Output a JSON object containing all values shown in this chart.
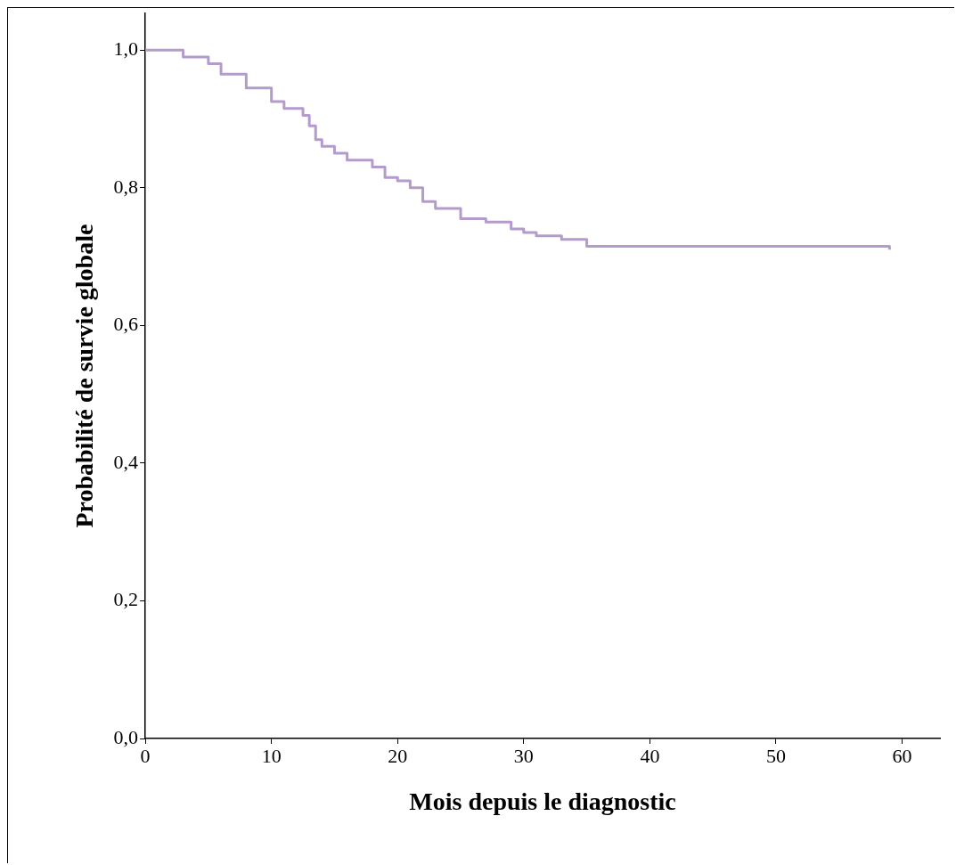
{
  "chart_data": {
    "type": "step",
    "xlabel": "Mois depuis le diagnostic",
    "ylabel": "Probabilité de survie globale",
    "x": [
      0,
      2,
      3,
      5,
      6,
      8,
      10,
      11,
      12.5,
      13,
      13.5,
      14,
      15,
      16,
      18,
      19,
      20,
      21,
      22,
      23,
      25,
      27,
      29,
      30,
      31,
      33,
      35,
      59
    ],
    "series": [
      {
        "color": "#b39ccb",
        "values": [
          1.0,
          1.0,
          0.99,
          0.98,
          0.965,
          0.945,
          0.925,
          0.915,
          0.905,
          0.89,
          0.87,
          0.86,
          0.85,
          0.84,
          0.83,
          0.815,
          0.81,
          0.8,
          0.78,
          0.77,
          0.755,
          0.75,
          0.74,
          0.735,
          0.73,
          0.725,
          0.715,
          0.71
        ]
      }
    ],
    "xlim": [
      0,
      63
    ],
    "xticks": [
      0,
      10,
      20,
      30,
      40,
      50,
      60
    ],
    "ylim": [
      0,
      1.053
    ],
    "yticks": [
      {
        "value": 0,
        "label": "0,0"
      },
      {
        "value": 0.2,
        "label": "0,2"
      },
      {
        "value": 0.4,
        "label": "0,4"
      },
      {
        "value": 0.6,
        "label": "0,6"
      },
      {
        "value": 0.8,
        "label": "0,8"
      },
      {
        "value": 1,
        "label": "1,0"
      }
    ],
    "grid": false,
    "legend": false,
    "marker": "none",
    "line_style": "solid"
  }
}
